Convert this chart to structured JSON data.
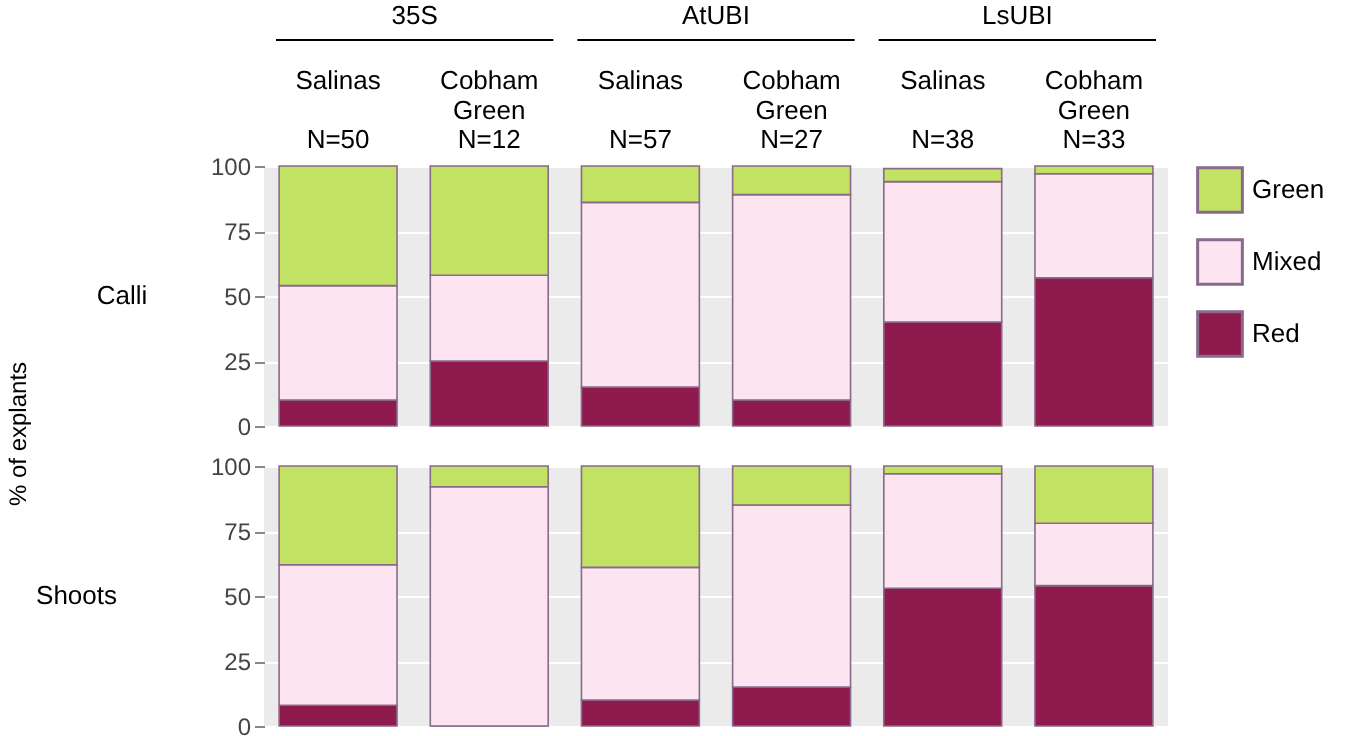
{
  "chart_data": [
    {
      "type": "bar",
      "stacked": true,
      "title": "Calli",
      "ylabel": "% of explants",
      "categories": [
        "Salinas",
        "Cobham Green",
        "Salinas",
        "Cobham Green",
        "Salinas",
        "Cobham Green"
      ],
      "annotations": [
        "35S",
        "AtUBI",
        "LsUBI",
        "N=50",
        "N=12",
        "N=57",
        "N=27",
        "N=38",
        "N=33"
      ],
      "legend": "right",
      "grid": true,
      "ylim": [
        0,
        100
      ],
      "yticks": [
        0,
        25,
        50,
        75,
        100
      ],
      "series": [
        {
          "name": "Red",
          "color": "#8e1a4e",
          "values": [
            10,
            25,
            15,
            10,
            40,
            57
          ]
        },
        {
          "name": "Mixed",
          "color": "#fce4f1",
          "values": [
            44,
            33,
            71,
            79,
            54,
            40
          ]
        },
        {
          "name": "Green",
          "color": "#c2e264",
          "values": [
            46,
            42,
            14,
            11,
            5,
            3
          ]
        }
      ]
    },
    {
      "type": "bar",
      "stacked": true,
      "title": "Shoots",
      "categories": [
        null,
        null,
        null,
        null,
        null,
        null
      ],
      "grid": true,
      "ylim": [
        0,
        100
      ],
      "yticks": [
        0,
        25,
        50,
        75,
        100
      ],
      "series": [
        {
          "name": "Red",
          "color": "#8e1a4e",
          "values": [
            8,
            0,
            10,
            15,
            53,
            54
          ]
        },
        {
          "name": "Mixed",
          "color": "#fce4f1",
          "values": [
            54,
            92,
            51,
            70,
            44,
            24
          ]
        },
        {
          "name": "Green",
          "color": "#c2e264",
          "values": [
            38,
            8,
            39,
            15,
            3,
            22
          ]
        }
      ]
    }
  ]
}
